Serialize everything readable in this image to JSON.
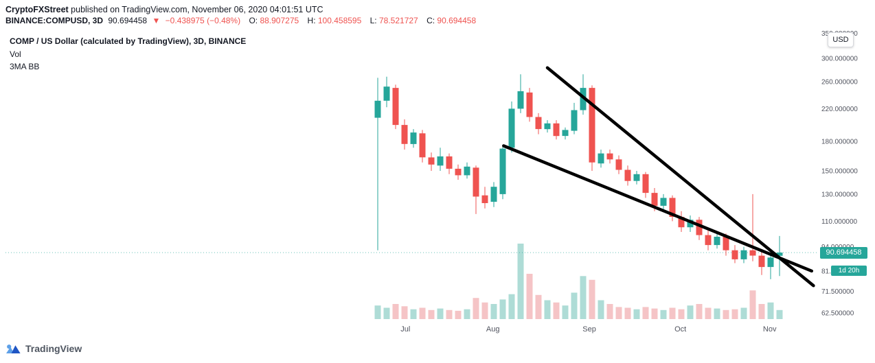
{
  "header": {
    "byline": {
      "author": "CryptoFXStreet",
      "text": " published on TradingView.com, November 06, 2020 04:01:51 UTC"
    },
    "symbol": {
      "name": "BINANCE:COMPUSD, 3D",
      "last": "90.694458",
      "direction_icon": "▼",
      "change": "−0.438975 (−0.48%)",
      "ohlc": [
        {
          "label": "O:",
          "value": "88.907275"
        },
        {
          "label": "H:",
          "value": "100.458595"
        },
        {
          "label": "L:",
          "value": "78.521727"
        },
        {
          "label": "C:",
          "value": "90.694458"
        }
      ]
    }
  },
  "chart": {
    "title": "COMP / US Dollar (calculated by TradingView), 3D, BINANCE",
    "indicators": [
      "Vol",
      "3MA BB"
    ],
    "currency_button": "USD",
    "price_label": "90.694458",
    "countdown_label": "1d 20h"
  },
  "footer": {
    "logo_text": "TradingView"
  },
  "colors": {
    "up": "#26a69a",
    "down": "#ef5350",
    "vol_up": "#aedcd6",
    "vol_down": "#f5c4c6",
    "trendline": "#000000",
    "badge_bg": "#26a69a",
    "red_text": "#ef5350",
    "axis_text": "#50535e",
    "title_text": "#131722"
  },
  "chart_data": {
    "type": "candlestick",
    "symbol": "COMP/USD",
    "exchange": "BINANCE",
    "timeframe": "3D",
    "price_scale": "logarithmic",
    "ylim": [
      59,
      355
    ],
    "price_line": 90.694458,
    "candles_ohlc": [
      [
        208,
        266,
        92,
        231
      ],
      [
        231,
        268,
        222,
        252
      ],
      [
        250,
        255,
        194,
        199
      ],
      [
        199,
        206,
        171,
        177
      ],
      [
        177,
        194,
        173,
        190
      ],
      [
        189,
        193,
        158,
        163
      ],
      [
        163,
        168,
        150,
        156
      ],
      [
        155,
        173,
        150,
        164
      ],
      [
        164,
        167,
        147,
        152
      ],
      [
        152,
        156,
        142,
        146
      ],
      [
        146,
        158,
        143,
        154
      ],
      [
        153,
        155,
        115,
        128
      ],
      [
        129,
        136,
        119,
        123
      ],
      [
        124,
        140,
        120,
        136
      ],
      [
        130,
        176,
        126,
        172
      ],
      [
        173,
        230,
        168,
        220
      ],
      [
        220,
        272,
        214,
        245
      ],
      [
        243,
        250,
        203,
        209
      ],
      [
        209,
        214,
        188,
        194
      ],
      [
        194,
        205,
        190,
        201
      ],
      [
        201,
        205,
        182,
        186
      ],
      [
        186,
        196,
        182,
        193
      ],
      [
        192,
        228,
        188,
        218
      ],
      [
        218,
        272,
        212,
        250
      ],
      [
        250,
        254,
        150,
        158
      ],
      [
        157,
        171,
        153,
        167
      ],
      [
        167,
        171,
        157,
        161
      ],
      [
        161,
        165,
        147,
        151
      ],
      [
        151,
        155,
        137,
        141
      ],
      [
        141,
        150,
        138,
        147
      ],
      [
        147,
        149,
        127,
        131
      ],
      [
        131,
        135,
        117,
        121
      ],
      [
        121,
        130,
        118,
        127
      ],
      [
        127,
        129,
        110,
        113
      ],
      [
        113,
        117,
        103,
        106
      ],
      [
        106,
        114,
        103,
        111
      ],
      [
        111,
        113,
        98,
        101
      ],
      [
        101,
        105,
        92,
        95
      ],
      [
        95,
        102,
        93,
        100
      ],
      [
        100,
        102,
        89,
        92
      ],
      [
        92,
        95,
        85,
        87
      ],
      [
        87,
        94,
        85,
        92
      ],
      [
        92,
        130,
        86,
        89
      ],
      [
        89,
        91,
        79,
        83
      ],
      [
        83,
        89,
        77,
        88
      ],
      [
        88.907275,
        100.458595,
        78.521727,
        90.694458
      ]
    ],
    "volume_rel": [
      18,
      15,
      20,
      17,
      13,
      15,
      12,
      14,
      12,
      11,
      13,
      28,
      22,
      20,
      26,
      33,
      100,
      60,
      32,
      25,
      22,
      18,
      35,
      57,
      52,
      25,
      20,
      16,
      15,
      13,
      16,
      14,
      12,
      15,
      13,
      18,
      20,
      15,
      14,
      12,
      13,
      15,
      38,
      20,
      22,
      12
    ],
    "months": [
      {
        "label": "Jul",
        "index": 3.1
      },
      {
        "label": "Aug",
        "index": 12.9
      },
      {
        "label": "Sep",
        "index": 23.7
      },
      {
        "label": "Oct",
        "index": 33.9
      },
      {
        "label": "Nov",
        "index": 43.9
      }
    ],
    "y_ticks": [
      {
        "price": 350,
        "label": "350.000000"
      },
      {
        "price": 300,
        "label": "300.000000"
      },
      {
        "price": 260,
        "label": "260.000000"
      },
      {
        "price": 220,
        "label": "220.000000"
      },
      {
        "price": 180,
        "label": "180.000000"
      },
      {
        "price": 150,
        "label": "150.000000"
      },
      {
        "price": 130,
        "label": "130.000000"
      },
      {
        "price": 110,
        "label": "110.000000"
      },
      {
        "price": 94,
        "label": "94.000000"
      },
      {
        "price": 81,
        "label": "81.000000"
      },
      {
        "price": 71.5,
        "label": "71.500000"
      },
      {
        "price": 62.5,
        "label": "62.500000"
      }
    ],
    "trendlines": [
      {
        "from_index": 19.0,
        "from_price": 283,
        "to_index": 48.8,
        "to_price": 74
      },
      {
        "from_index": 14.1,
        "from_price": 175,
        "to_index": 48.6,
        "to_price": 81
      }
    ]
  }
}
